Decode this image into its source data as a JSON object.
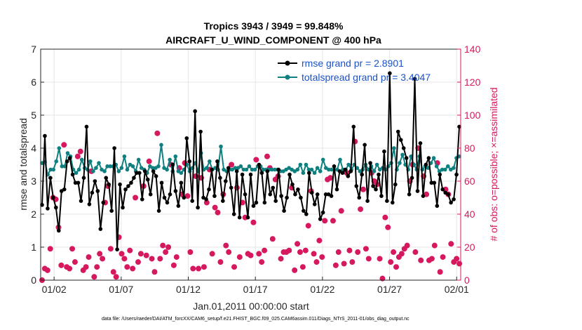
{
  "chart_data": {
    "type": "line",
    "title_line1": "Tropics 3943 / 3949 = 99.848%",
    "title_line2": "AIRCRAFT_U_WIND_COMPONENT @ 400 hPa",
    "xlabel": "Jan.01,2011 00:00:00 start",
    "ylabel_left": "rmse and totalspread",
    "ylabel_right": "# of obs: o=possible; ×=assimilated",
    "footnote": "data file: /Users/raeder/DAI/ATM_forcXX/CAM6_setup/f.e21.FHIST_BGC.f09_025.CAM6assim.011/Diags_NTrS_2011-01/obs_diag_output.nc",
    "xlim": [
      0.5,
      31.8
    ],
    "ylim_left": [
      0,
      7
    ],
    "ylim_right": [
      0,
      140
    ],
    "x_ticks": [
      1.5,
      6.5,
      11.5,
      16.5,
      21.5,
      26.5,
      31.5
    ],
    "x_tick_labels": [
      "01/02",
      "01/07",
      "01/12",
      "01/17",
      "01/22",
      "01/27",
      "02/01"
    ],
    "y_ticks_left": [
      0,
      1,
      2,
      3,
      4,
      5,
      6,
      7
    ],
    "y_tick_labels_left": [
      "0",
      "1",
      "2",
      "3",
      "4",
      "5",
      "6",
      "7"
    ],
    "y_ticks_right": [
      0,
      20,
      40,
      60,
      80,
      100,
      120,
      140
    ],
    "y_tick_labels_right": [
      "0",
      "20",
      "40",
      "60",
      "80",
      "100",
      "120",
      "140"
    ],
    "series": [
      {
        "name": "rmse",
        "legend_label": "rmse grand pr = 2.8901",
        "axis": "left",
        "color": "#000000",
        "values": [
          2.28,
          4.37,
          2.17,
          3.1,
          2.5,
          2.2,
          1.5,
          2.7,
          2.75,
          3.6,
          3.7,
          3.2,
          2.95,
          2.95,
          2.4,
          3.1,
          4.65,
          2.3,
          2.65,
          3.0,
          2.7,
          1.55,
          2.35,
          3.1,
          2.9,
          2.1,
          4.0,
          0.93,
          2.9,
          2.2,
          2.75,
          2.85,
          2.95,
          3.1,
          3.25,
          3.25,
          2.45,
          3.3,
          3.05,
          2.6,
          3.3,
          3.15,
          2.1,
          2.95,
          2.5,
          2.35,
          2.6,
          3.5,
          2.7,
          2.25,
          2.95,
          2.5,
          4.3,
          3.6,
          2.4,
          5.12,
          2.2,
          4.5,
          2.5,
          2.45,
          2.75,
          3.35,
          2.55,
          3.6,
          3.1,
          2.4,
          3.0,
          3.4,
          2.8,
          2.0,
          3.3,
          1.9,
          3.2,
          2.6,
          1.9,
          3.2,
          2.25,
          2.35,
          3.5,
          3.25,
          2.35,
          3.3,
          2.6,
          2.8,
          2.4,
          3.35,
          2.55,
          2.1,
          2.5,
          3.2,
          2.9,
          2.6,
          2.75,
          2.5,
          2.1,
          2.0,
          3.25,
          2.65,
          2.3,
          2.6,
          1.85,
          2.05,
          2.6,
          2.6,
          2.55,
          3.45,
          2.75,
          3.3,
          3.25,
          3.35,
          3.15,
          3.3,
          4.65,
          2.85,
          2.5,
          3.2,
          4.1,
          2.4,
          3.55,
          2.85,
          2.75,
          3.2,
          2.55,
          3.9,
          2.4,
          6.27,
          2.35,
          2.9,
          4.5,
          4.25,
          4.0,
          3.7,
          2.6,
          3.1,
          6.1,
          2.7,
          4.15,
          2.55,
          3.5,
          3.7,
          2.95,
          2.95,
          2.25,
          3.2,
          2.75,
          2.65,
          2.6,
          2.35,
          2.45,
          3.2,
          4.65
        ]
      },
      {
        "name": "totalspread",
        "legend_label": "totalspread grand pr = 3.4047",
        "axis": "left",
        "color": "#0f7f7f",
        "values": [
          3.55,
          3.58,
          3.2,
          3.35,
          3.35,
          3.6,
          4.0,
          3.45,
          3.45,
          3.85,
          3.75,
          3.35,
          3.25,
          3.35,
          3.65,
          3.4,
          3.35,
          3.6,
          3.3,
          3.4,
          3.55,
          3.35,
          3.3,
          3.45,
          3.45,
          3.45,
          3.5,
          3.3,
          3.4,
          3.75,
          3.35,
          3.5,
          3.45,
          3.3,
          3.65,
          3.4,
          3.35,
          3.25,
          3.45,
          3.4,
          3.4,
          3.45,
          4.1,
          3.4,
          3.35,
          3.65,
          3.3,
          3.75,
          3.3,
          3.25,
          3.35,
          3.5,
          3.3,
          3.4,
          3.55,
          3.3,
          3.85,
          3.35,
          3.4,
          3.6,
          3.35,
          3.4,
          3.35,
          4.05,
          3.35,
          3.3,
          3.35,
          3.35,
          3.4,
          3.4,
          3.45,
          3.35,
          3.35,
          3.45,
          3.35,
          3.35,
          3.45,
          3.45,
          3.35,
          3.35,
          3.35,
          3.35,
          3.35,
          3.35,
          3.3,
          3.3,
          3.35,
          3.4,
          3.35,
          3.3,
          3.35,
          3.5,
          3.25,
          3.5,
          3.35,
          3.35,
          3.25,
          3.4,
          3.3,
          3.65,
          3.4,
          3.35,
          3.35,
          3.35,
          3.35,
          3.65,
          3.35,
          3.35,
          3.5,
          3.35,
          3.5,
          3.4,
          3.3,
          3.35,
          3.5,
          3.35,
          3.45,
          3.3,
          3.5,
          3.35,
          3.4,
          3.35,
          3.45,
          3.55,
          4.0,
          3.35,
          3.55,
          3.8,
          3.5,
          3.35,
          3.75,
          3.5,
          3.35,
          3.75,
          3.35,
          3.45,
          3.4,
          3.55,
          3.7,
          3.45,
          3.3,
          3.35,
          3.35,
          3.45,
          3.35,
          3.4,
          3.7,
          3.75
        ]
      },
      {
        "name": "obs_possible",
        "axis": "right",
        "color": "#d6185f",
        "marker": "o",
        "values": [
          0,
          7,
          6,
          19,
          50,
          49,
          32,
          9,
          82,
          8,
          7,
          19,
          11,
          75,
          78,
          6,
          8,
          14,
          66,
          2,
          8,
          16,
          13,
          47,
          57,
          19,
          5,
          2,
          26,
          16,
          13,
          8,
          18,
          7,
          50,
          11,
          16,
          57,
          15,
          72,
          13,
          5,
          89,
          13,
          21,
          17,
          20,
          70,
          9,
          14,
          68,
          52,
          71,
          51,
          17,
          7,
          63,
          7,
          62,
          8,
          47,
          67,
          16,
          44,
          41,
          11,
          52,
          21,
          17,
          70,
          8,
          56,
          14,
          47,
          38,
          16,
          15,
          35,
          73,
          16,
          11,
          18,
          75,
          68,
          25,
          61,
          63,
          13,
          17,
          17,
          18,
          56,
          6,
          22,
          17,
          8,
          18,
          33,
          54,
          16,
          11,
          24,
          14,
          36,
          61,
          62,
          36,
          9,
          17,
          42,
          10,
          65,
          18,
          11,
          84,
          17,
          43,
          55,
          19,
          13,
          65,
          60,
          58,
          13,
          1,
          38,
          32,
          11,
          17,
          8,
          14,
          16,
          19,
          21,
          60,
          70,
          17,
          80,
          12,
          63,
          52,
          12,
          13,
          21,
          71,
          5,
          14,
          55,
          52,
          22,
          11,
          13,
          10
        ]
      }
    ]
  }
}
